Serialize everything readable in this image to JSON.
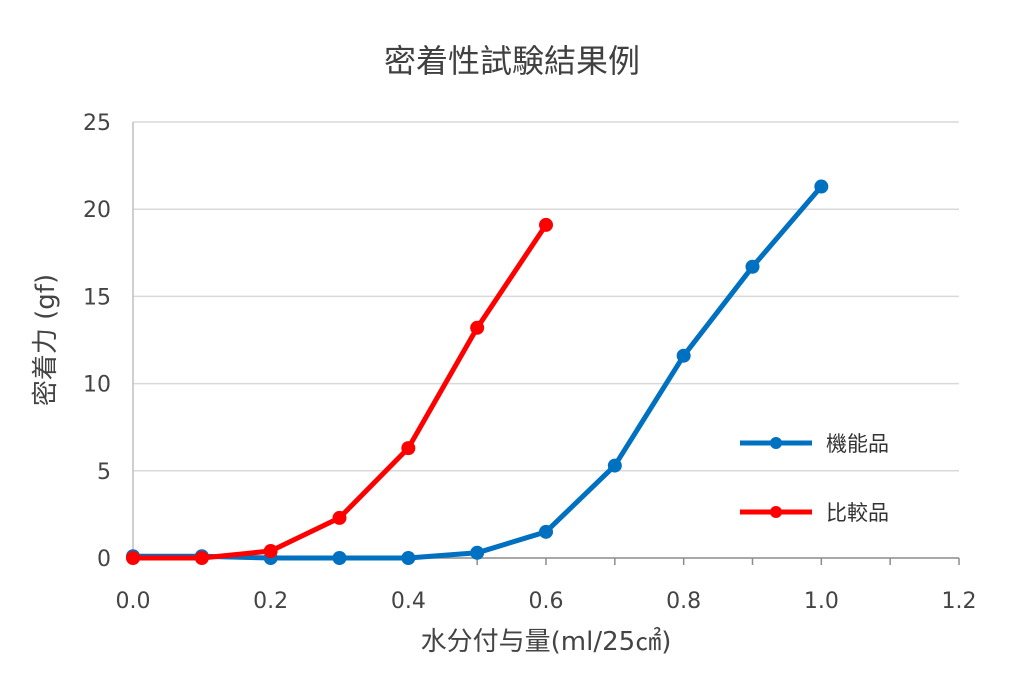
{
  "chart_data": {
    "type": "line",
    "title": "密着性試験結果例",
    "xlabel": "水分付与量(ml/25㎠)",
    "ylabel": "密着力 (gf)",
    "xlim": [
      0,
      1.2
    ],
    "ylim": [
      0,
      25
    ],
    "x_ticks": [
      "0.0",
      "0.2",
      "0.4",
      "0.6",
      "0.8",
      "1.0",
      "1.2"
    ],
    "y_ticks": [
      "0",
      "5",
      "10",
      "15",
      "20",
      "25"
    ],
    "grid": "horizontal",
    "legend_position": "right",
    "series": [
      {
        "name": "機能品",
        "color": "#0070C0",
        "x": [
          0.0,
          0.1,
          0.2,
          0.3,
          0.4,
          0.5,
          0.6,
          0.7,
          0.8,
          0.9,
          1.0
        ],
        "y": [
          0.1,
          0.1,
          0.0,
          0.0,
          0.0,
          0.3,
          1.5,
          5.3,
          11.6,
          16.7,
          21.3
        ]
      },
      {
        "name": "比較品",
        "color": "#FF0000",
        "x": [
          0.0,
          0.1,
          0.2,
          0.3,
          0.4,
          0.5,
          0.6
        ],
        "y": [
          0.0,
          0.0,
          0.4,
          2.3,
          6.3,
          13.2,
          19.1
        ]
      }
    ]
  }
}
